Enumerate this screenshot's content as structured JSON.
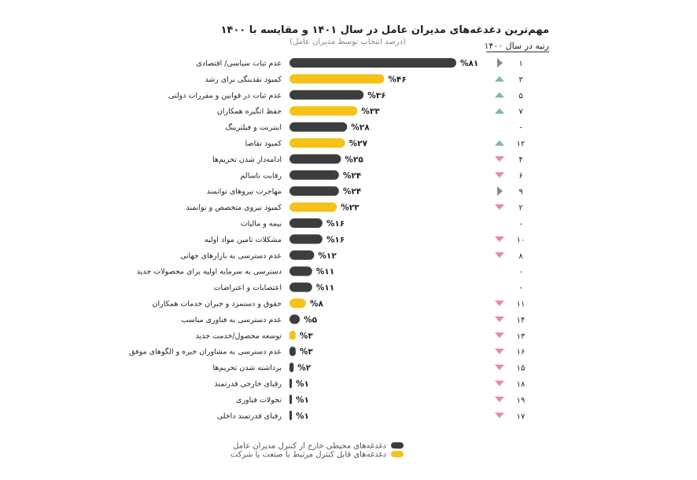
{
  "colors": {
    "external": "#3d3d3d",
    "internal": "#f5c21b",
    "up": "#7fb89e",
    "down": "#e8899a",
    "same": "#8a8a8a"
  },
  "chart_data": {
    "type": "bar",
    "orientation": "horizontal",
    "title": "مهم‌ترین دغدغه‌های مدیران عامل در سال ۱۴۰۱ و مقایسه با ۱۴۰۰",
    "subtitle": "(درصد انتخاب توسط مدیران عامل)",
    "rank_header": "رتبه در سال ۱۴۰۰",
    "xlim": [
      0,
      81
    ],
    "legend": [
      {
        "name": "دغدغه‌های محیطی خارج از کنترل مدیران عامل",
        "color": "external"
      },
      {
        "name": "دغدغه‌های قابل کنترل مرتبط با صنعت یا شرکت",
        "color": "internal"
      }
    ],
    "legend_position": "bottom-right",
    "rows": [
      {
        "category": "عدم ثبات سیاسی/ اقتصادی",
        "value": 81,
        "value_label": "%۸۱",
        "group": "external",
        "rank_1400": "۱",
        "trend": "same"
      },
      {
        "category": "کمبود نقدینگی برای رشد",
        "value": 46,
        "value_label": "%۴۶",
        "group": "internal",
        "rank_1400": "۳",
        "trend": "up"
      },
      {
        "category": "عدم ثبات در قوانین و مقررات دولتی",
        "value": 36,
        "value_label": "%۳۶",
        "group": "external",
        "rank_1400": "۵",
        "trend": "up"
      },
      {
        "category": "حفظ انگیزه همکاران",
        "value": 33,
        "value_label": "%۳۳",
        "group": "internal",
        "rank_1400": "۷",
        "trend": "up"
      },
      {
        "category": "اینترنت و فیلترینگ",
        "value": 28,
        "value_label": "%۲۸",
        "group": "external",
        "rank_1400": "-",
        "trend": "none"
      },
      {
        "category": "کمبود تقاضا",
        "value": 27,
        "value_label": "%۲۷",
        "group": "internal",
        "rank_1400": "۱۲",
        "trend": "up"
      },
      {
        "category": "ادامه‌دار شدن تحریم‌ها",
        "value": 25,
        "value_label": "%۲۵",
        "group": "external",
        "rank_1400": "۴",
        "trend": "down"
      },
      {
        "category": "رقابت ناسالم",
        "value": 24,
        "value_label": "%۲۴",
        "group": "external",
        "rank_1400": "۶",
        "trend": "down"
      },
      {
        "category": "مهاجرت نیروهای توانمند",
        "value": 24,
        "value_label": "%۲۴",
        "group": "external",
        "rank_1400": "۹",
        "trend": "same"
      },
      {
        "category": "کمبود نیروی متخصص و توانمند",
        "value": 23,
        "value_label": "%۲۳",
        "group": "internal",
        "rank_1400": "۲",
        "trend": "down"
      },
      {
        "category": "بیمه و مالیات",
        "value": 16,
        "value_label": "%۱۶",
        "group": "external",
        "rank_1400": "-",
        "trend": "none"
      },
      {
        "category": "مشکلات تامین مواد اولیه",
        "value": 16,
        "value_label": "%۱۶",
        "group": "external",
        "rank_1400": "۱۰",
        "trend": "down"
      },
      {
        "category": "عدم دسترسی به بازارهای جهانی",
        "value": 12,
        "value_label": "%۱۲",
        "group": "external",
        "rank_1400": "۸",
        "trend": "down"
      },
      {
        "category": "دسترسی به سرمایه اولیه برای محصولات جدید",
        "value": 11,
        "value_label": "%۱۱",
        "group": "external",
        "rank_1400": "-",
        "trend": "none"
      },
      {
        "category": "اعتصابات و اعتراضات",
        "value": 11,
        "value_label": "%۱۱",
        "group": "external",
        "rank_1400": "-",
        "trend": "none"
      },
      {
        "category": "حقوق و دستمزد و جبران خدمات همکاران",
        "value": 8,
        "value_label": "%۸",
        "group": "internal",
        "rank_1400": "۱۱",
        "trend": "down"
      },
      {
        "category": "عدم دسترسی به فناوری مناسب",
        "value": 5,
        "value_label": "%۵",
        "group": "external",
        "rank_1400": "۱۴",
        "trend": "down"
      },
      {
        "category": "توسعه محصول/خدمت جدید",
        "value": 3,
        "value_label": "%۳",
        "group": "internal",
        "rank_1400": "۱۳",
        "trend": "down"
      },
      {
        "category": "عدم دسترسی به مشاوران خبره و الگوهای موفق",
        "value": 3,
        "value_label": "%۳",
        "group": "external",
        "rank_1400": "۱۶",
        "trend": "down"
      },
      {
        "category": "برداشته شدن تحریم‌ها",
        "value": 2,
        "value_label": "%۲",
        "group": "external",
        "rank_1400": "۱۵",
        "trend": "down"
      },
      {
        "category": "رقبای خارجی قدرتمند",
        "value": 1,
        "value_label": "%۱",
        "group": "external",
        "rank_1400": "۱۸",
        "trend": "down"
      },
      {
        "category": "تحولات فناوری",
        "value": 1,
        "value_label": "%۱",
        "group": "external",
        "rank_1400": "۱۹",
        "trend": "down"
      },
      {
        "category": "رقبای قدرتمند داخلی",
        "value": 1,
        "value_label": "%۱",
        "group": "external",
        "rank_1400": "۱۷",
        "trend": "down"
      }
    ]
  }
}
